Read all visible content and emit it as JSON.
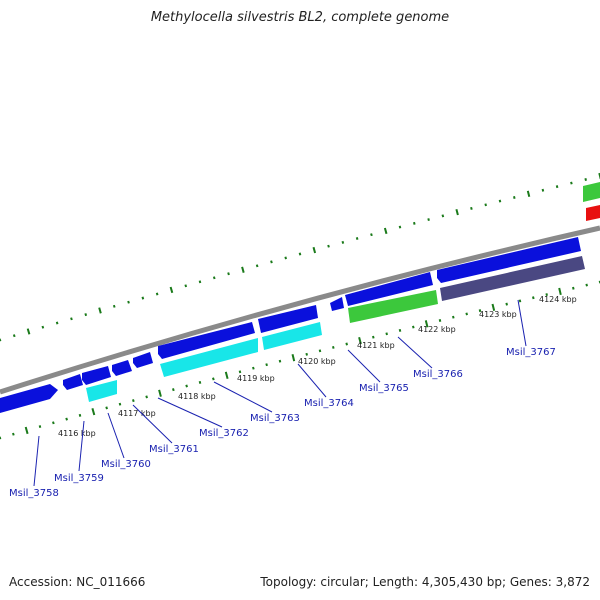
{
  "title": "Methylocella silvestris BL2, complete genome",
  "footer": {
    "accession": "Accession: NC_011666",
    "summary": "Topology: circular; Length: 4,305,430 bp; Genes: 3,872"
  },
  "colors": {
    "forward_cds": "#0a10dc",
    "reverse_cyan": "#18e6e8",
    "reverse_green": "#3cc83c",
    "reverse_purple": "#4a4882",
    "red_feature": "#e81010",
    "backbone": "#8a8a8a",
    "tick": "#1a7a1a",
    "locus_label": "#1a22b0",
    "scale_label": "#222222"
  },
  "scale_labels": [
    "4116 kbp",
    "4117 kbp",
    "4118 kbp",
    "4119 kbp",
    "4120 kbp",
    "4121 kbp",
    "4122 kbp",
    "4123 kbp",
    "4124 kbp"
  ],
  "genes": [
    "Msil_3758",
    "Msil_3759",
    "Msil_3760",
    "Msil_3761",
    "Msil_3762",
    "Msil_3763",
    "Msil_3764",
    "Msil_3765",
    "Msil_3766",
    "Msil_3767"
  ]
}
